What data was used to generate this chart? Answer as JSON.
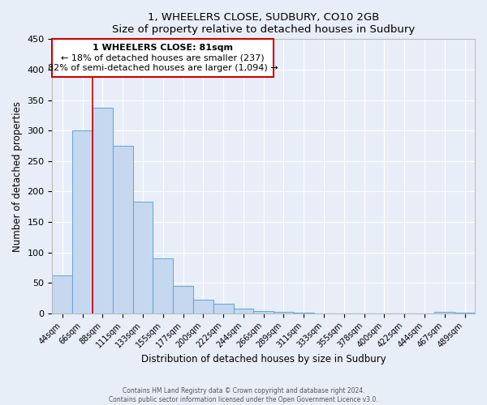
{
  "title": "1, WHEELERS CLOSE, SUDBURY, CO10 2GB",
  "subtitle": "Size of property relative to detached houses in Sudbury",
  "xlabel": "Distribution of detached houses by size in Sudbury",
  "ylabel": "Number of detached properties",
  "footer1": "Contains HM Land Registry data © Crown copyright and database right 2024.",
  "footer2": "Contains public sector information licensed under the Open Government Licence v3.0.",
  "bar_labels": [
    "44sqm",
    "66sqm",
    "88sqm",
    "111sqm",
    "133sqm",
    "155sqm",
    "177sqm",
    "200sqm",
    "222sqm",
    "244sqm",
    "266sqm",
    "289sqm",
    "311sqm",
    "333sqm",
    "355sqm",
    "378sqm",
    "400sqm",
    "422sqm",
    "444sqm",
    "467sqm",
    "489sqm"
  ],
  "bar_values": [
    62,
    300,
    338,
    275,
    183,
    90,
    45,
    22,
    15,
    8,
    3,
    2,
    1,
    0,
    0,
    0,
    0,
    0,
    0,
    2,
    1
  ],
  "bar_color": "#c5d8f0",
  "bar_edge_color": "#6aaad4",
  "ylim": [
    0,
    450
  ],
  "yticks": [
    0,
    50,
    100,
    150,
    200,
    250,
    300,
    350,
    400,
    450
  ],
  "vline_color": "#cc0000",
  "annotation_title": "1 WHEELERS CLOSE: 81sqm",
  "annotation_line1": "← 18% of detached houses are smaller (237)",
  "annotation_line2": "82% of semi-detached houses are larger (1,094) →",
  "annotation_box_color": "#cc0000",
  "background_color": "#e8eef8",
  "grid_color": "#ffffff"
}
